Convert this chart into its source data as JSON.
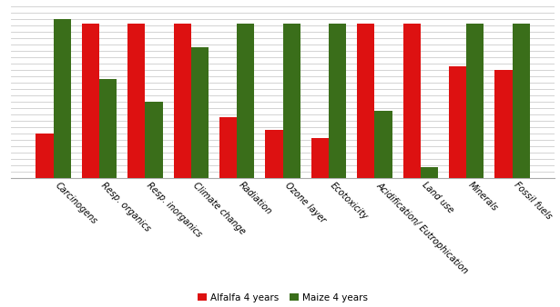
{
  "categories": [
    "Carcinogens",
    "Resp. organics",
    "Resp. inorganics",
    "Climate change",
    "Radiation",
    "Ozone layer",
    "Ecotoxicity",
    "Acidification/ Eutrophication",
    "Land use",
    "Minerals",
    "Fossil fuels"
  ],
  "alfalfa": [
    0.28,
    0.97,
    0.97,
    0.97,
    0.38,
    0.3,
    0.25,
    0.97,
    0.97,
    0.7,
    0.68
  ],
  "maize": [
    1.0,
    0.62,
    0.48,
    0.82,
    0.97,
    0.97,
    0.97,
    0.42,
    0.07,
    0.97,
    0.97
  ],
  "alfalfa_color": "#dd1111",
  "maize_color": "#3a6e1a",
  "legend_alfalfa": "Alfalfa 4 years",
  "legend_maize": "Maize 4 years",
  "bar_width": 0.38,
  "ylim": [
    0,
    1.08
  ],
  "grid_color": "#cccccc",
  "bg_color": "#ffffff",
  "tick_fontsize": 7.0,
  "legend_fontsize": 7.5
}
